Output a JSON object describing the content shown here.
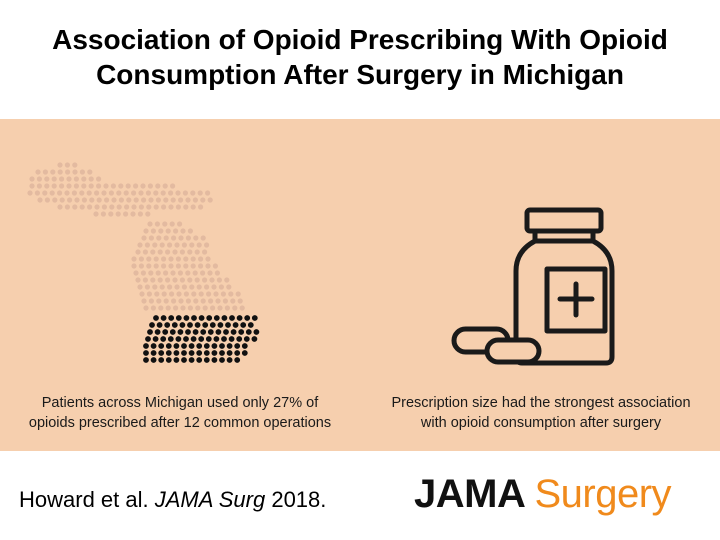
{
  "title": {
    "line1": "Association of Opioid Prescribing With Opioid",
    "line2": "Consumption After Surgery in Michigan"
  },
  "left_panel": {
    "icon": "michigan-dot-map-icon",
    "caption_line1": "Patients across Michigan used only 27% of",
    "caption_line2": "opioids prescribed after 12 common operations"
  },
  "right_panel": {
    "icon": "pill-bottle-icon",
    "caption_line1": "Prescription size had the strongest association",
    "caption_line2": "with opioid consumption after surgery"
  },
  "citation": {
    "authors": "Howard et al.",
    "journal": "JAMA Surg",
    "year": "2018."
  },
  "logo": {
    "word1": "JAMA",
    "word2": "Surgery"
  },
  "colors": {
    "panel_background": "#f6cfae",
    "map_dots_faint": "#e3baa0",
    "map_dots_dark": "#111111",
    "logo_accent": "#f08a1c"
  }
}
